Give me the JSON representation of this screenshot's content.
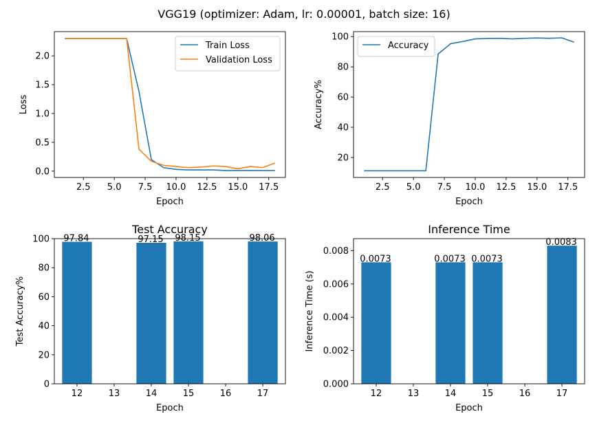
{
  "figure": {
    "title": "VGG19 (optimizer: Adam, lr: 0.00001, batch size: 16)"
  },
  "chart_data": [
    {
      "type": "line",
      "title": "",
      "xlabel": "Epoch",
      "ylabel": "Loss",
      "x": [
        1,
        2,
        3,
        4,
        5,
        6,
        7,
        8,
        9,
        10,
        11,
        12,
        13,
        14,
        15,
        16,
        17,
        18
      ],
      "xlim": [
        0.15,
        18.85
      ],
      "ylim": [
        -0.11,
        2.42
      ],
      "xticks": [
        2.5,
        5.0,
        7.5,
        10.0,
        12.5,
        15.0,
        17.5
      ],
      "xtick_labels": [
        "2.5",
        "5.0",
        "7.5",
        "10.0",
        "12.5",
        "15.0",
        "17.5"
      ],
      "yticks": [
        0.0,
        0.5,
        1.0,
        1.5,
        2.0
      ],
      "ytick_labels": [
        "0.0",
        "0.5",
        "1.0",
        "1.5",
        "2.0"
      ],
      "legend": "top-right",
      "series": [
        {
          "name": "Train Loss",
          "color": "#1f77b4",
          "values": [
            2.3,
            2.3,
            2.3,
            2.3,
            2.3,
            2.3,
            1.38,
            0.2,
            0.06,
            0.03,
            0.02,
            0.02,
            0.02,
            0.01,
            0.01,
            0.01,
            0.01,
            0.01
          ]
        },
        {
          "name": "Validation Loss",
          "color": "#ff7f0e",
          "values": [
            2.3,
            2.3,
            2.3,
            2.3,
            2.3,
            2.3,
            0.38,
            0.17,
            0.1,
            0.08,
            0.06,
            0.07,
            0.09,
            0.08,
            0.04,
            0.08,
            0.06,
            0.14
          ]
        }
      ]
    },
    {
      "type": "line",
      "title": "",
      "xlabel": "Epoch",
      "ylabel": "Accuracy%",
      "x": [
        1,
        2,
        3,
        4,
        5,
        6,
        7,
        8,
        9,
        10,
        11,
        12,
        13,
        14,
        15,
        16,
        17,
        18
      ],
      "xlim": [
        0.15,
        18.85
      ],
      "ylim": [
        6.8,
        103.3
      ],
      "xticks": [
        2.5,
        5.0,
        7.5,
        10.0,
        12.5,
        15.0,
        17.5
      ],
      "xtick_labels": [
        "2.5",
        "5.0",
        "7.5",
        "10.0",
        "12.5",
        "15.0",
        "17.5"
      ],
      "yticks": [
        20,
        40,
        60,
        80,
        100
      ],
      "ytick_labels": [
        "20",
        "40",
        "60",
        "80",
        "100"
      ],
      "legend": "top-left",
      "series": [
        {
          "name": "Accuracy",
          "color": "#1f77b4",
          "values": [
            11.2,
            11.2,
            11.2,
            11.2,
            11.2,
            11.2,
            88.5,
            95.3,
            96.8,
            98.5,
            98.8,
            98.9,
            98.5,
            98.9,
            99.1,
            98.9,
            99.2,
            96.3
          ]
        }
      ]
    },
    {
      "type": "bar",
      "title": "Test Accuracy",
      "xlabel": "Epoch",
      "ylabel": "Test Accuracy%",
      "categories": [
        "12",
        "14",
        "15",
        "17"
      ],
      "x": [
        12,
        14,
        15,
        17
      ],
      "values": [
        97.84,
        97.15,
        98.15,
        98.06
      ],
      "data_labels": [
        "97.84",
        "97.15",
        "98.15",
        "98.06"
      ],
      "xlim": [
        11.39,
        17.61
      ],
      "ylim": [
        0,
        100
      ],
      "xticks": [
        12,
        13,
        14,
        15,
        16,
        17
      ],
      "xtick_labels": [
        "12",
        "13",
        "14",
        "15",
        "16",
        "17"
      ],
      "yticks": [
        0,
        20,
        40,
        60,
        80,
        100
      ],
      "ytick_labels": [
        "0",
        "20",
        "40",
        "60",
        "80",
        "100"
      ],
      "color": "#1f77b4"
    },
    {
      "type": "bar",
      "title": "Inference Time",
      "xlabel": "Epoch",
      "ylabel": "Inference Time (s)",
      "categories": [
        "12",
        "14",
        "15",
        "17"
      ],
      "x": [
        12,
        14,
        15,
        17
      ],
      "values": [
        0.0073,
        0.0073,
        0.0073,
        0.0083
      ],
      "data_labels": [
        "0.0073",
        "0.0073",
        "0.0073",
        "0.0083"
      ],
      "xlim": [
        11.39,
        17.61
      ],
      "ylim": [
        0,
        0.00872
      ],
      "xticks": [
        12,
        13,
        14,
        15,
        16,
        17
      ],
      "xtick_labels": [
        "12",
        "13",
        "14",
        "15",
        "16",
        "17"
      ],
      "yticks": [
        0.0,
        0.002,
        0.004,
        0.006,
        0.008
      ],
      "ytick_labels": [
        "0.000",
        "0.002",
        "0.004",
        "0.006",
        "0.008"
      ],
      "color": "#1f77b4"
    }
  ]
}
